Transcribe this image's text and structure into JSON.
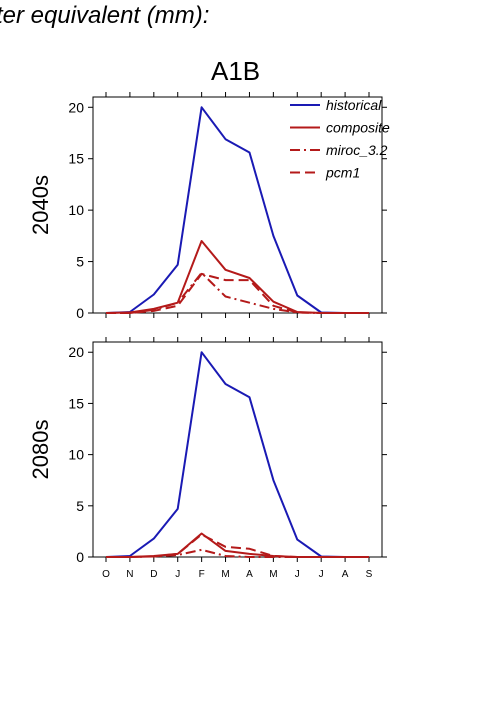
{
  "header": {
    "heading": "ter equivalent (mm):",
    "scenario": "A1B"
  },
  "chart_data": [
    {
      "type": "line",
      "ylabel": "2040s",
      "ylim": [
        0,
        21
      ],
      "yticks": [
        0,
        5,
        10,
        15,
        20
      ],
      "categories": [
        "O",
        "N",
        "D",
        "J",
        "F",
        "M",
        "A",
        "M",
        "J",
        "J",
        "A",
        "S"
      ],
      "show_x_tick_labels": false,
      "legend": {
        "placement": "top-right"
      },
      "series": [
        {
          "name": "historical",
          "color": "#1a1ab4",
          "style": "solid",
          "values": [
            0,
            0.1,
            1.8,
            4.7,
            20.0,
            16.9,
            15.6,
            7.5,
            1.7,
            0.05,
            0,
            0
          ]
        },
        {
          "name": "composite",
          "color": "#b41a1a",
          "style": "solid",
          "values": [
            0,
            0.05,
            0.4,
            1.0,
            7.0,
            4.2,
            3.4,
            1.1,
            0.1,
            0,
            0,
            0
          ]
        },
        {
          "name": "miroc_3.2",
          "color": "#b41a1a",
          "style": "dashdot",
          "values": [
            0,
            0,
            0.3,
            1.0,
            3.9,
            1.6,
            1.0,
            0.4,
            0.05,
            0,
            0,
            0
          ]
        },
        {
          "name": "pcm1",
          "color": "#b41a1a",
          "style": "dashed",
          "values": [
            0,
            0,
            0.2,
            0.7,
            3.8,
            3.2,
            3.2,
            0.7,
            0.05,
            0,
            0,
            0
          ]
        }
      ]
    },
    {
      "type": "line",
      "ylabel": "2080s",
      "ylim": [
        0,
        21
      ],
      "yticks": [
        0,
        5,
        10,
        15,
        20
      ],
      "categories": [
        "O",
        "N",
        "D",
        "J",
        "F",
        "M",
        "A",
        "M",
        "J",
        "J",
        "A",
        "S"
      ],
      "show_x_tick_labels": true,
      "series": [
        {
          "name": "historical",
          "color": "#1a1ab4",
          "style": "solid",
          "values": [
            0,
            0.1,
            1.8,
            4.7,
            20.0,
            16.9,
            15.6,
            7.5,
            1.7,
            0.05,
            0,
            0
          ]
        },
        {
          "name": "composite",
          "color": "#b41a1a",
          "style": "solid",
          "values": [
            0,
            0,
            0.1,
            0.3,
            2.3,
            0.6,
            0.3,
            0.1,
            0,
            0,
            0,
            0
          ]
        },
        {
          "name": "miroc_3.2",
          "color": "#b41a1a",
          "style": "dashdot",
          "values": [
            0,
            0,
            0.05,
            0.2,
            0.7,
            0.1,
            0,
            0,
            0,
            0,
            0,
            0
          ]
        },
        {
          "name": "pcm1",
          "color": "#b41a1a",
          "style": "dashed",
          "values": [
            0,
            0,
            0.05,
            0.3,
            2.2,
            1.0,
            0.8,
            0.1,
            0,
            0,
            0,
            0
          ]
        }
      ]
    }
  ]
}
